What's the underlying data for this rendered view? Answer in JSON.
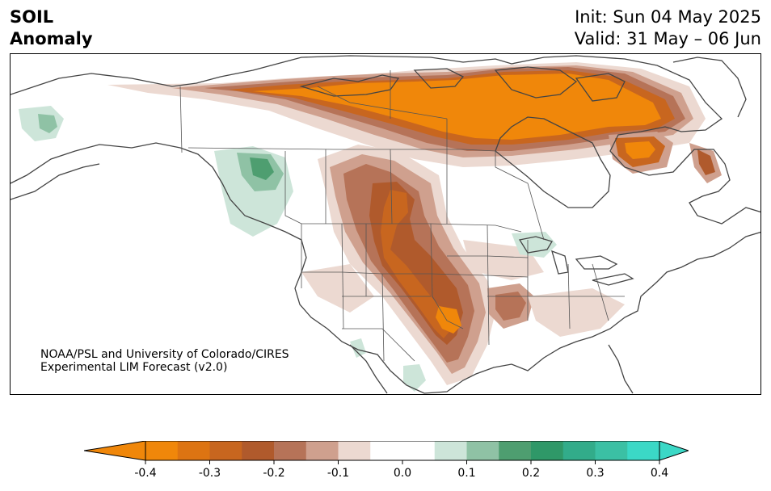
{
  "header": {
    "variable": "SOIL",
    "quantity": "Anomaly",
    "init": "Init: Sun 04 May 2025",
    "valid": "Valid: 31 May – 06 Jun"
  },
  "credit": {
    "line1": "NOAA/PSL and University of Colorado/CIRES",
    "line2": "Experimental LIM Forecast (v2.0)"
  },
  "colorbar": {
    "ticks": [
      "-0.4",
      "-0.3",
      "-0.2",
      "-0.1",
      "0.0",
      "0.1",
      "0.2",
      "0.3",
      "0.4"
    ],
    "colors": [
      "#f0870a",
      "#dd7412",
      "#c8661f",
      "#b05a2c",
      "#b67358",
      "#cfa08e",
      "#ecd9d1",
      "#ffffff",
      "#ffffff",
      "#cde5d9",
      "#8fc2a5",
      "#4e9e70",
      "#2f9868",
      "#32ac8a",
      "#3bc0a4",
      "#3bd8c6"
    ],
    "extend_low_color": "#f0870a",
    "extend_high_color": "#3bd8c6"
  },
  "map_colors": {
    "coast": "#444444",
    "border": "#555555"
  }
}
